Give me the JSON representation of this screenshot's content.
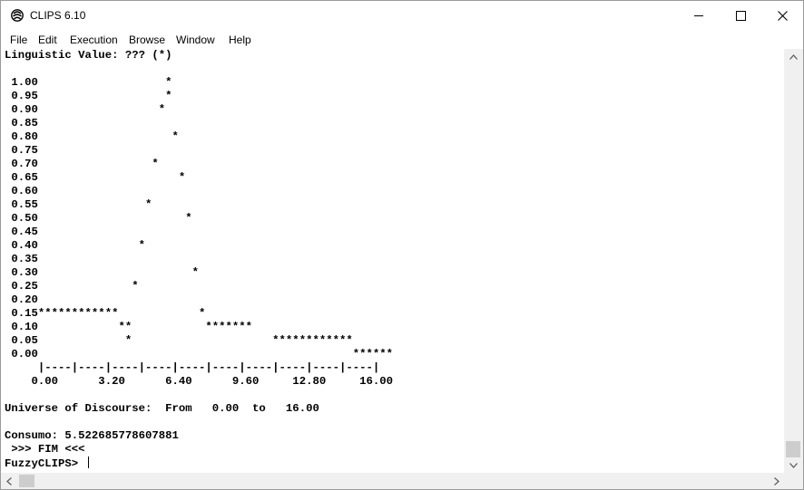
{
  "window": {
    "title": "CLIPS 6.10",
    "icon": "clips-app-icon",
    "controls": [
      "minimize-icon",
      "maximize-icon",
      "close-icon"
    ]
  },
  "menu": [
    "File",
    "Edit",
    "Execution",
    "Browse",
    "Window",
    "Help"
  ],
  "console": {
    "lines": [
      "Linguistic Value: ??? (*)",
      "",
      " 1.00                   *",
      " 0.95                   *",
      " 0.90                  *",
      " 0.85",
      " 0.80                    *",
      " 0.75",
      " 0.70                 *",
      " 0.65                     *",
      " 0.60",
      " 0.55                *",
      " 0.50                      *",
      " 0.45",
      " 0.40               *",
      " 0.35",
      " 0.30                       *",
      " 0.25              *",
      " 0.20",
      " 0.15************            *",
      " 0.10            **           *******",
      " 0.05             *                     ************",
      " 0.00                                               ******",
      "     |----|----|----|----|----|----|----|----|----|----|",
      "    0.00      3.20      6.40      9.60     12.80     16.00",
      "",
      "Universe of Discourse:  From   0.00  to   16.00",
      "",
      "Consumo: 5.522685778607881",
      " >>> FIM <<<",
      "FuzzyCLIPS> "
    ]
  },
  "scrollbars": {
    "vertical": {
      "up": "scroll-up-arrow-icon",
      "down": "scroll-down-arrow-icon"
    },
    "horizontal": {
      "left": "scroll-left-arrow-icon",
      "right": "scroll-right-arrow-icon"
    }
  }
}
